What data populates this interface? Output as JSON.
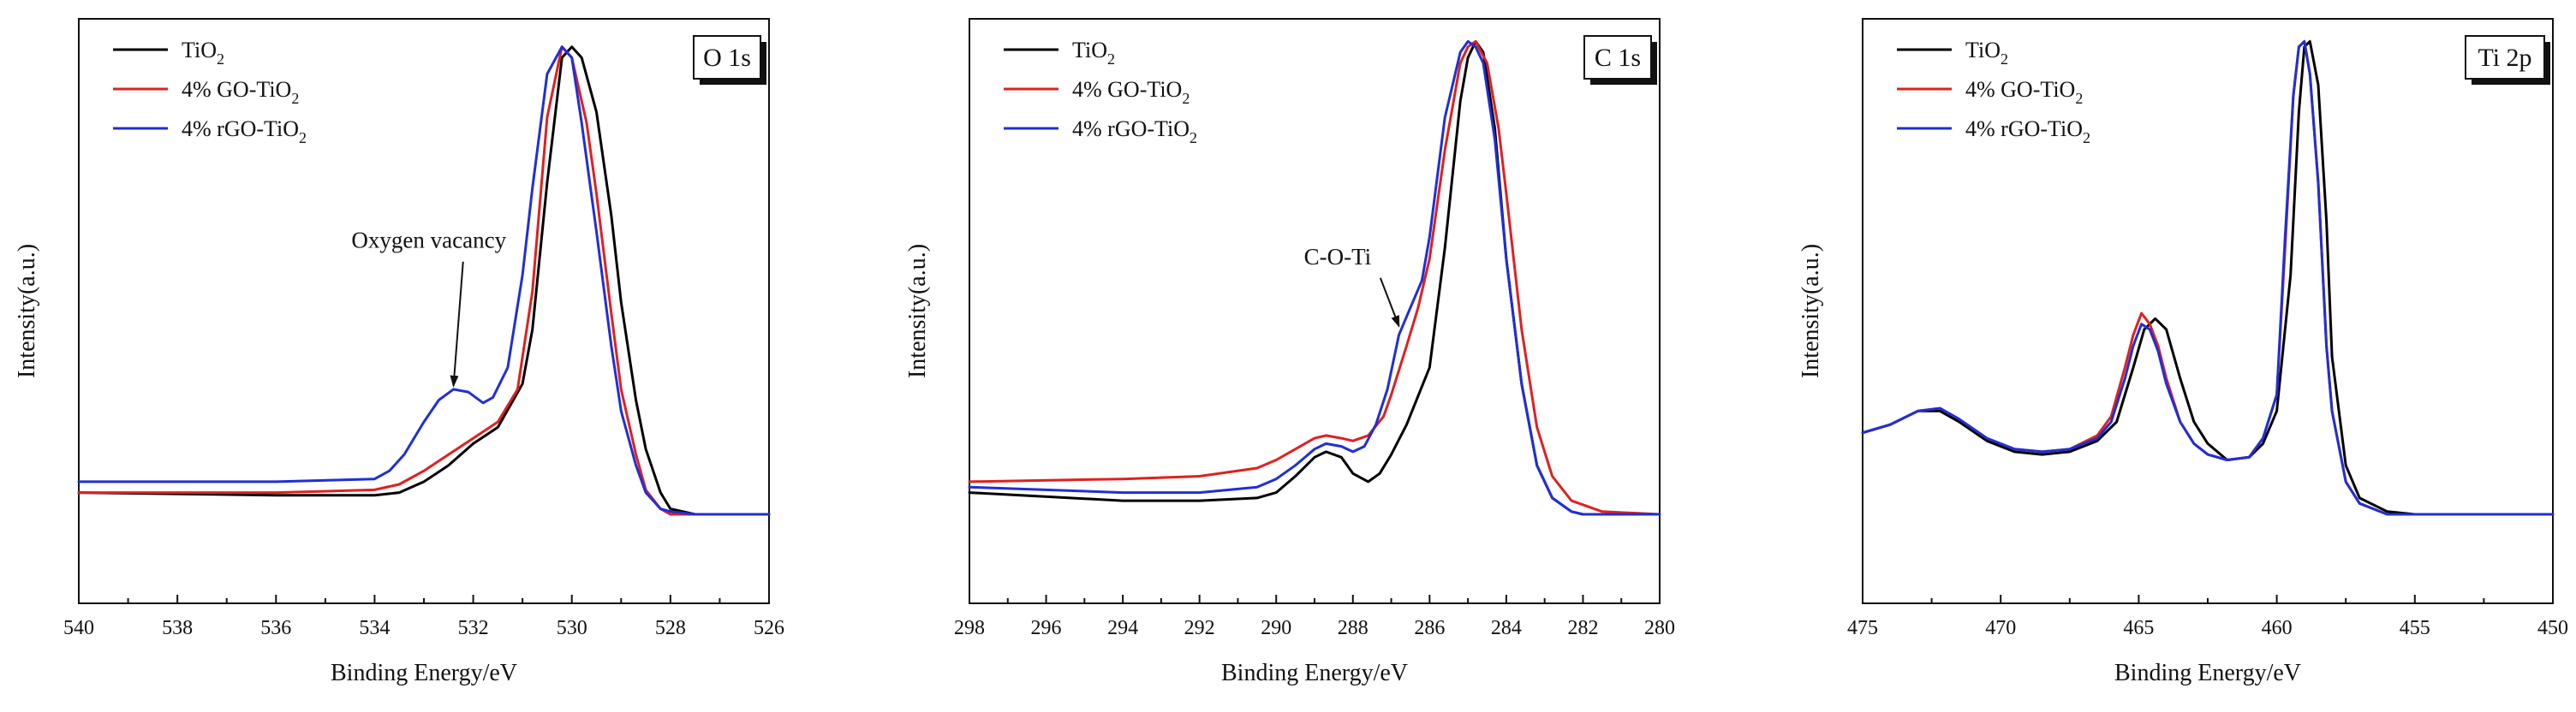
{
  "chart_data": [
    {
      "type": "line",
      "panel_label": "O 1s",
      "xlabel": "Binding Energy/eV",
      "ylabel": "Intensity(a.u.)",
      "xlim": [
        540,
        526
      ],
      "ylim": [
        0,
        100
      ],
      "xticks": [
        540,
        538,
        536,
        534,
        532,
        530,
        528,
        526
      ],
      "y_tick_labels": false,
      "legend_position": "top-left",
      "annotation": {
        "text": "Oxygen vacancy",
        "x": 532.4,
        "y": 34,
        "text_x": 532.9,
        "text_y": 60
      },
      "series": [
        {
          "name": "TiO",
          "subscript": "2",
          "color": "#000000",
          "x": [
            540,
            536,
            534,
            533.5,
            533,
            532.5,
            532,
            531.5,
            531,
            530.8,
            530.5,
            530.2,
            530,
            529.8,
            529.5,
            529.2,
            529,
            528.7,
            528.5,
            528.2,
            528,
            527.5,
            527,
            526
          ],
          "y": [
            15,
            14.5,
            14.5,
            15,
            17,
            20,
            24,
            27,
            35,
            45,
            72,
            95,
            97,
            95,
            85,
            66,
            50,
            32,
            23,
            15,
            12,
            11,
            11,
            11
          ]
        },
        {
          "name": "4% GO-TiO",
          "subscript": "2",
          "color": "#e02020",
          "x": [
            540,
            536,
            534,
            533.5,
            533,
            532.5,
            532,
            531.5,
            531.1,
            530.8,
            530.5,
            530.2,
            530,
            529.7,
            529.5,
            529.2,
            529,
            528.7,
            528.5,
            528.2,
            528,
            527.5,
            527,
            526
          ],
          "y": [
            15,
            15,
            15.5,
            16.5,
            19,
            22,
            25,
            28,
            34,
            52,
            84,
            97,
            95,
            83,
            70,
            48,
            34,
            22,
            15.5,
            12,
            11,
            11,
            11,
            11
          ]
        },
        {
          "name": "4% rGO-TiO",
          "subscript": "2",
          "color": "#1f2fd6",
          "x": [
            540,
            536,
            534,
            533.7,
            533.4,
            533,
            532.7,
            532.4,
            532.1,
            531.8,
            531.6,
            531.3,
            531,
            530.8,
            530.5,
            530.2,
            530,
            529.8,
            529.5,
            529.2,
            529,
            528.7,
            528.5,
            528.2,
            528,
            527.5,
            527,
            526
          ],
          "y": [
            17,
            17,
            17.5,
            19,
            22,
            28,
            32,
            34,
            33.5,
            31.5,
            32.5,
            38,
            55,
            71,
            92,
            97,
            95,
            83,
            63,
            42,
            30,
            20,
            15,
            12,
            11.5,
            11,
            11,
            11
          ]
        }
      ]
    },
    {
      "type": "line",
      "panel_label": "C 1s",
      "xlabel": "Binding Energy/eV",
      "ylabel": "Intensity(a.u.)",
      "xlim": [
        298,
        280
      ],
      "ylim": [
        0,
        100
      ],
      "xticks": [
        298,
        296,
        294,
        292,
        290,
        288,
        286,
        284,
        282,
        280
      ],
      "y_tick_labels": false,
      "legend_position": "top-left",
      "annotation": {
        "text": "C-O-Ti",
        "x": 286.8,
        "y": 45,
        "text_x": 288.4,
        "text_y": 57
      },
      "series": [
        {
          "name": "TiO",
          "subscript": "2",
          "color": "#000000",
          "x": [
            298,
            294,
            292,
            290.5,
            290,
            289.5,
            289,
            288.7,
            288.3,
            288,
            287.6,
            287.3,
            287,
            286.6,
            286,
            285.6,
            285.2,
            285,
            284.8,
            284.6,
            284.3,
            284,
            283.6,
            283.2,
            282.8,
            282.3,
            282,
            281,
            280
          ],
          "y": [
            15,
            13.5,
            13.5,
            14,
            15,
            18,
            21.5,
            22.5,
            21.5,
            18.5,
            17,
            18.5,
            22,
            27.5,
            38,
            60,
            87,
            95,
            98,
            96,
            82,
            58,
            35,
            20,
            14,
            11.5,
            11,
            11,
            11
          ]
        },
        {
          "name": "4% GO-TiO",
          "subscript": "2",
          "color": "#e02020",
          "x": [
            298,
            294,
            292,
            290.5,
            290,
            289.5,
            289,
            288.7,
            288.3,
            288,
            287.6,
            287.2,
            287,
            286.6,
            286.3,
            286,
            285.6,
            285.2,
            285,
            284.8,
            284.5,
            284.2,
            284,
            283.6,
            283.2,
            282.8,
            282.3,
            281.5,
            280
          ],
          "y": [
            17,
            17.5,
            18,
            19.5,
            21,
            23,
            25,
            25.5,
            25,
            24.5,
            25.5,
            29,
            33,
            42,
            49,
            58,
            78,
            94,
            97,
            98,
            94,
            82,
            70,
            45,
            27,
            18,
            13.5,
            11.5,
            11
          ]
        },
        {
          "name": "4% rGO-TiO",
          "subscript": "2",
          "color": "#1f2fd6",
          "x": [
            298,
            294,
            292,
            290.5,
            290,
            289.5,
            289,
            288.7,
            288.3,
            288,
            287.7,
            287.4,
            287.1,
            286.8,
            286.5,
            286.2,
            286,
            285.6,
            285.2,
            285,
            284.8,
            284.6,
            284.3,
            284,
            283.6,
            283.2,
            282.8,
            282.3,
            282,
            280
          ],
          "y": [
            16,
            15,
            15,
            16,
            17.5,
            20,
            23,
            24,
            23.5,
            22.5,
            23.5,
            27.5,
            34,
            44,
            49,
            54,
            62,
            84,
            96,
            98,
            97,
            94,
            80,
            58,
            35,
            20,
            14,
            11.5,
            11,
            11
          ]
        }
      ]
    },
    {
      "type": "line",
      "panel_label": "Ti 2p",
      "xlabel": "Binding Energy/eV",
      "ylabel": "Intensity(a.u.)",
      "xlim": [
        475,
        450
      ],
      "ylim": [
        0,
        100
      ],
      "xticks": [
        475,
        470,
        465,
        460,
        455,
        450
      ],
      "y_tick_labels": false,
      "legend_position": "top-left",
      "series": [
        {
          "name": "TiO",
          "subscript": "2",
          "color": "#000000",
          "x": [
            475,
            474,
            473,
            472.2,
            471.5,
            470.5,
            469.5,
            468.5,
            467.5,
            466.5,
            465.8,
            465.2,
            464.8,
            464.4,
            464,
            463.5,
            463,
            462.5,
            461.8,
            461,
            460.5,
            460,
            459.5,
            459.2,
            459,
            458.8,
            458.5,
            458.2,
            458,
            457.5,
            457,
            456,
            455,
            453,
            450
          ],
          "y": [
            26,
            27.5,
            30,
            30,
            28,
            24.5,
            22.5,
            22,
            22.5,
            24.5,
            28,
            38,
            45,
            47,
            45,
            36,
            28,
            24,
            21,
            21.5,
            24,
            30,
            55,
            85,
            97,
            98,
            90,
            65,
            40,
            20,
            14,
            11.5,
            11,
            11,
            11
          ]
        },
        {
          "name": "4% GO-TiO",
          "subscript": "2",
          "color": "#e02020",
          "x": [
            475,
            474,
            473,
            472.2,
            471.5,
            470.5,
            469.5,
            468.5,
            467.5,
            466.5,
            466,
            465.5,
            465.2,
            464.9,
            464.6,
            464.3,
            464,
            463.5,
            463,
            462.5,
            461.8,
            461,
            460.5,
            460,
            459.7,
            459.4,
            459.2,
            459,
            458.8,
            458.5,
            458.2,
            458,
            457.5,
            457,
            456,
            455,
            453,
            450
          ],
          "y": [
            26,
            27.5,
            30,
            30.5,
            28.5,
            25,
            23,
            22.5,
            23,
            25.5,
            29,
            38,
            44,
            48,
            46,
            42,
            36,
            28,
            24,
            22,
            21,
            21.5,
            25,
            33,
            60,
            88,
            97,
            98,
            92,
            72,
            42,
            30,
            17,
            13,
            11,
            11,
            11,
            11
          ]
        },
        {
          "name": "4% rGO-TiO",
          "subscript": "2",
          "color": "#1f2fd6",
          "x": [
            475,
            474,
            473,
            472.2,
            471.5,
            470.5,
            469.5,
            468.5,
            467.5,
            466.5,
            466,
            465.5,
            465.2,
            464.9,
            464.6,
            464.3,
            464,
            463.5,
            463,
            462.5,
            461.8,
            461,
            460.5,
            460,
            459.7,
            459.4,
            459.2,
            459,
            458.8,
            458.5,
            458.2,
            458,
            457.5,
            457,
            456,
            455,
            453,
            450
          ],
          "y": [
            26,
            27.5,
            30,
            30.5,
            28.5,
            25,
            23,
            22.5,
            23,
            25,
            28,
            36,
            42,
            46,
            45,
            41,
            35,
            28,
            24,
            22,
            21,
            21.5,
            25,
            33,
            62,
            88,
            97,
            98,
            92,
            72,
            42,
            30,
            17,
            13,
            11,
            11,
            11,
            11
          ]
        }
      ]
    }
  ]
}
